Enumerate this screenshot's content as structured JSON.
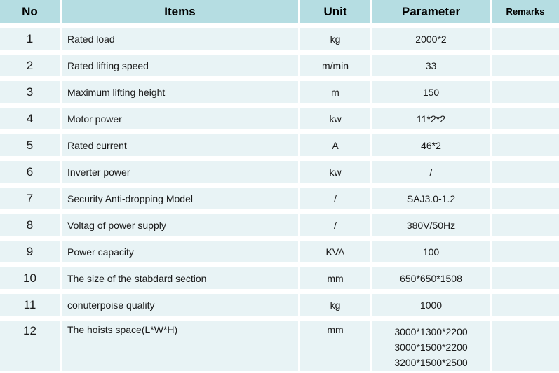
{
  "colors": {
    "header_bg": "#b5dde2",
    "row_bg": "#e8f3f5",
    "gutter": "#ffffff",
    "text": "#1a1a1a"
  },
  "table": {
    "headers": [
      "No",
      "Items",
      "Unit",
      "Parameter",
      "Remarks"
    ],
    "rows": [
      {
        "no": "1",
        "item": "Rated load",
        "unit": "kg",
        "parameter": "2000*2",
        "remarks": ""
      },
      {
        "no": "2",
        "item": "Rated lifting speed",
        "unit": "m/min",
        "parameter": "33",
        "remarks": ""
      },
      {
        "no": "3",
        "item": "Maximum lifting height",
        "unit": "m",
        "parameter": "150",
        "remarks": ""
      },
      {
        "no": "4",
        "item": "Motor power",
        "unit": "kw",
        "parameter": "11*2*2",
        "remarks": ""
      },
      {
        "no": "5",
        "item": "Rated current",
        "unit": "A",
        "parameter": "46*2",
        "remarks": ""
      },
      {
        "no": "6",
        "item": "Inverter power",
        "unit": "kw",
        "parameter": "/",
        "remarks": ""
      },
      {
        "no": "7",
        "item": "Security Anti-dropping Model",
        "unit": "/",
        "parameter": "SAJ3.0-1.2",
        "remarks": ""
      },
      {
        "no": "8",
        "item": "Voltag of power supply",
        "unit": "/",
        "parameter": "380V/50Hz",
        "remarks": ""
      },
      {
        "no": "9",
        "item": "Power capacity",
        "unit": "KVA",
        "parameter": "100",
        "remarks": ""
      },
      {
        "no": "10",
        "item": "The size of the stabdard section",
        "unit": "mm",
        "parameter": "650*650*1508",
        "remarks": ""
      },
      {
        "no": "11",
        "item": "conuterpoise quality",
        "unit": "kg",
        "parameter": "1000",
        "remarks": ""
      },
      {
        "no": "12",
        "item": "The hoists space(L*W*H)",
        "unit": "mm",
        "parameter": "3000*1300*2200\n3000*1500*2200\n3200*1500*2500",
        "remarks": ""
      }
    ]
  }
}
